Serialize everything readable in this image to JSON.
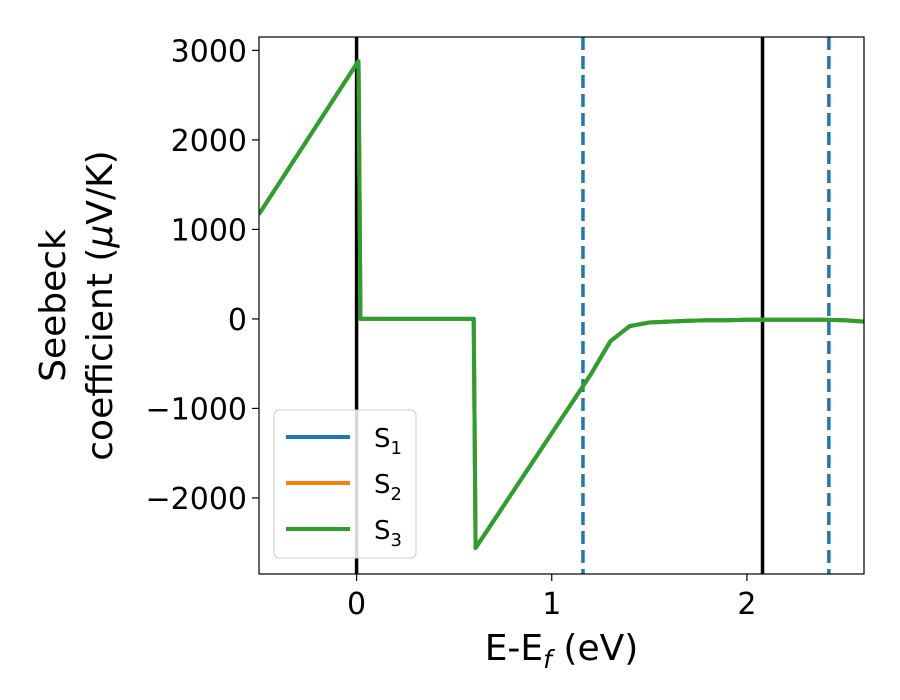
{
  "chart_data": {
    "type": "line",
    "xlabel": {
      "main": "E-E",
      "sub": "f",
      "unit": " (eV)"
    },
    "ylabel": {
      "line1": "Seebeck",
      "line2_prefix": "coefficient  (",
      "mu": "μ",
      "line2_suffix": "V/K)"
    },
    "xlim": [
      -0.5,
      2.6
    ],
    "ylim": [
      -2850,
      3150
    ],
    "x_ticks": [
      0,
      1,
      2
    ],
    "x_tick_labels": [
      "0",
      "1",
      "2"
    ],
    "y_ticks": [
      3000,
      2000,
      1000,
      0,
      -1000,
      -2000
    ],
    "y_tick_labels": [
      "3000",
      "2000",
      "1000",
      "0",
      "−1000",
      "−2000"
    ],
    "vlines_solid": [
      0.0,
      2.08
    ],
    "vlines_dashed": [
      1.16,
      2.42
    ],
    "colors": {
      "s1": "#1f77b4",
      "s2": "#ff7f0e",
      "s3": "#2ca02c",
      "vline_solid": "#000000",
      "vline_dashed": "#1f77b4"
    },
    "series": [
      {
        "name": "S",
        "sub": "1",
        "color": "#1f77b4",
        "x": [
          -0.5,
          0.0,
          0.01,
          0.02,
          0.6,
          0.61,
          1.2,
          1.3,
          1.4,
          1.5,
          1.6,
          1.7,
          1.8,
          1.9,
          2.0,
          2.1,
          2.2,
          2.3,
          2.4,
          2.5,
          2.6
        ],
        "y": [
          1170,
          2850,
          2880,
          0,
          0,
          -2560,
          -620,
          -250,
          -80,
          -40,
          -30,
          -20,
          -15,
          -15,
          -10,
          -10,
          -10,
          -10,
          -10,
          -15,
          -30
        ]
      },
      {
        "name": "S",
        "sub": "2",
        "color": "#ff7f0e",
        "x": [
          -0.5,
          0.0,
          0.01,
          0.02,
          0.6,
          0.61,
          1.2,
          1.3,
          1.4,
          1.5,
          1.6,
          1.7,
          1.8,
          1.9,
          2.0,
          2.1,
          2.2,
          2.3,
          2.4,
          2.5,
          2.6
        ],
        "y": [
          1170,
          2850,
          2880,
          0,
          0,
          -2560,
          -620,
          -250,
          -80,
          -40,
          -30,
          -20,
          -15,
          -15,
          -10,
          -10,
          -10,
          -10,
          -10,
          -15,
          -30
        ]
      },
      {
        "name": "S",
        "sub": "3",
        "color": "#2ca02c",
        "x": [
          -0.5,
          0.0,
          0.01,
          0.02,
          0.6,
          0.61,
          1.2,
          1.3,
          1.4,
          1.5,
          1.6,
          1.7,
          1.8,
          1.9,
          2.0,
          2.1,
          2.2,
          2.3,
          2.4,
          2.5,
          2.6
        ],
        "y": [
          1170,
          2850,
          2880,
          0,
          0,
          -2560,
          -620,
          -250,
          -80,
          -40,
          -30,
          -20,
          -15,
          -15,
          -10,
          -10,
          -10,
          -10,
          -10,
          -15,
          -30
        ]
      }
    ],
    "legend": {
      "position": "lower-left"
    },
    "grid": false
  }
}
